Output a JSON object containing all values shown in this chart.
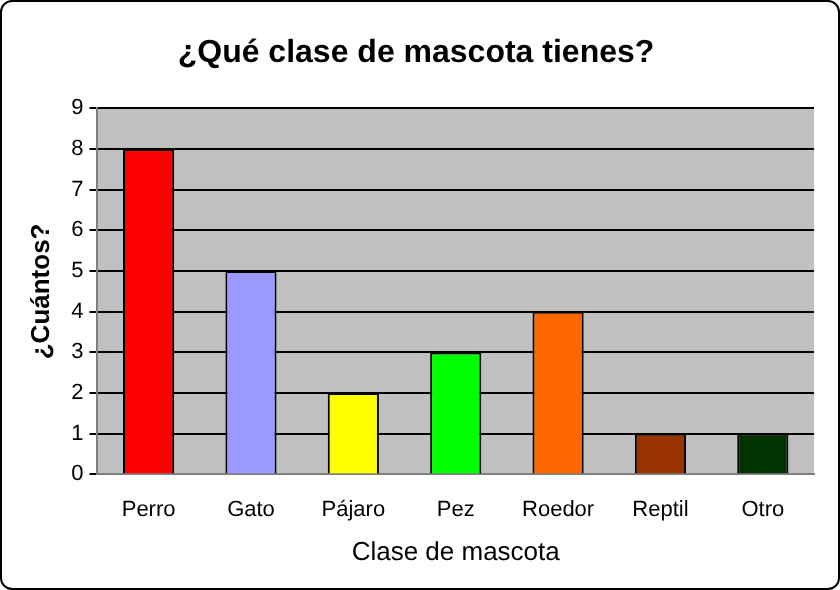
{
  "chart_data": {
    "type": "bar",
    "title": "¿Qué clase de mascota tienes?",
    "xlabel": "Clase de mascota",
    "ylabel": "¿Cuántos?",
    "categories": [
      "Perro",
      "Gato",
      "Pájaro",
      "Pez",
      "Roedor",
      "Reptil",
      "Otro"
    ],
    "values": [
      8,
      5,
      2,
      3,
      4,
      1,
      1
    ],
    "colors": [
      "#ff0000",
      "#9999ff",
      "#ffff00",
      "#00ff00",
      "#ff6600",
      "#993300",
      "#003300"
    ],
    "ylim": [
      0,
      9
    ],
    "yticks": [
      0,
      1,
      2,
      3,
      4,
      5,
      6,
      7,
      8,
      9
    ],
    "grid": "y",
    "legend": false
  }
}
